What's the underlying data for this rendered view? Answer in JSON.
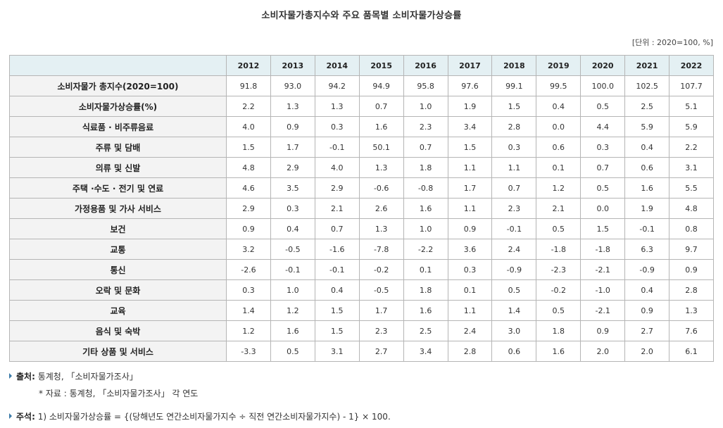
{
  "title": "소비자물가총지수와 주요 품목별 소비자물가상승률",
  "unit": "[단위 : 2020=100, %]",
  "table": {
    "years": [
      "2012",
      "2013",
      "2014",
      "2015",
      "2016",
      "2017",
      "2018",
      "2019",
      "2020",
      "2021",
      "2022"
    ],
    "rows": [
      {
        "label": "소비자물가 총지수(2020=100)",
        "values": [
          "91.8",
          "93.0",
          "94.2",
          "94.9",
          "95.8",
          "97.6",
          "99.1",
          "99.5",
          "100.0",
          "102.5",
          "107.7"
        ]
      },
      {
        "label": "소비자물가상승률(%)",
        "values": [
          "2.2",
          "1.3",
          "1.3",
          "0.7",
          "1.0",
          "1.9",
          "1.5",
          "0.4",
          "0.5",
          "2.5",
          "5.1"
        ]
      },
      {
        "label": "식료품 · 비주류음료",
        "values": [
          "4.0",
          "0.9",
          "0.3",
          "1.6",
          "2.3",
          "3.4",
          "2.8",
          "0.0",
          "4.4",
          "5.9",
          "5.9"
        ]
      },
      {
        "label": "주류 및 담배",
        "values": [
          "1.5",
          "1.7",
          "-0.1",
          "50.1",
          "0.7",
          "1.5",
          "0.3",
          "0.6",
          "0.3",
          "0.4",
          "2.2"
        ]
      },
      {
        "label": "의류 및 신발",
        "values": [
          "4.8",
          "2.9",
          "4.0",
          "1.3",
          "1.8",
          "1.1",
          "1.1",
          "0.1",
          "0.7",
          "0.6",
          "3.1"
        ]
      },
      {
        "label": "주택 ·수도 · 전기 및 연료",
        "values": [
          "4.6",
          "3.5",
          "2.9",
          "-0.6",
          "-0.8",
          "1.7",
          "0.7",
          "1.2",
          "0.5",
          "1.6",
          "5.5"
        ]
      },
      {
        "label": "가정용품 및 가사 서비스",
        "values": [
          "2.9",
          "0.3",
          "2.1",
          "2.6",
          "1.6",
          "1.1",
          "2.3",
          "2.1",
          "0.0",
          "1.9",
          "4.8"
        ]
      },
      {
        "label": "보건",
        "values": [
          "0.9",
          "0.4",
          "0.7",
          "1.3",
          "1.0",
          "0.9",
          "-0.1",
          "0.5",
          "1.5",
          "-0.1",
          "0.8"
        ]
      },
      {
        "label": "교통",
        "values": [
          "3.2",
          "-0.5",
          "-1.6",
          "-7.8",
          "-2.2",
          "3.6",
          "2.4",
          "-1.8",
          "-1.8",
          "6.3",
          "9.7"
        ]
      },
      {
        "label": "통신",
        "values": [
          "-2.6",
          "-0.1",
          "-0.1",
          "-0.2",
          "0.1",
          "0.3",
          "-0.9",
          "-2.3",
          "-2.1",
          "-0.9",
          "0.9"
        ]
      },
      {
        "label": "오락 및 문화",
        "values": [
          "0.3",
          "1.0",
          "0.4",
          "-0.5",
          "1.8",
          "0.1",
          "0.5",
          "-0.2",
          "-1.0",
          "0.4",
          "2.8"
        ]
      },
      {
        "label": "교육",
        "values": [
          "1.4",
          "1.2",
          "1.5",
          "1.7",
          "1.6",
          "1.1",
          "1.4",
          "0.5",
          "-2.1",
          "0.9",
          "1.3"
        ]
      },
      {
        "label": "음식 및 숙박",
        "values": [
          "1.2",
          "1.6",
          "1.5",
          "2.3",
          "2.5",
          "2.4",
          "3.0",
          "1.8",
          "0.9",
          "2.7",
          "7.6"
        ]
      },
      {
        "label": "기타 상품 및 서비스",
        "values": [
          "-3.3",
          "0.5",
          "3.1",
          "2.7",
          "3.4",
          "2.8",
          "0.6",
          "1.6",
          "2.0",
          "2.0",
          "6.1"
        ]
      }
    ]
  },
  "notes": {
    "source_head": "출처:",
    "source_text": "통계청, 「소비자물가조사」",
    "data_text": "* 자료 : 통계청, 「소비자물가조사」 각 연도",
    "remark_head": "주석:",
    "remark_text": "1) 소비자물가상승률 = {(당해년도 연간소비자물가지수 ÷ 직전 연간소비자물가지수) - 1} × 100."
  },
  "colors": {
    "header_bg": "#e4f0f3",
    "label_bg": "#f3f3f3",
    "border": "#b5b5b5",
    "bullet": "#3a7aa8"
  }
}
